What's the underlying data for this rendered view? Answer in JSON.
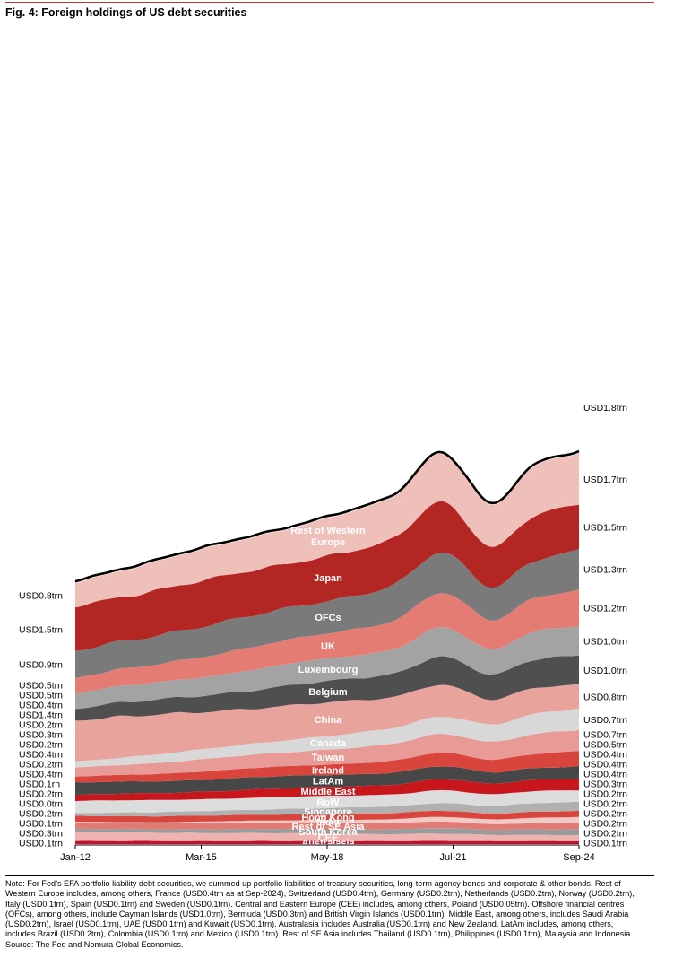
{
  "figure": {
    "title": "Fig. 4: Foreign holdings of US debt securities"
  },
  "chart_data": {
    "type": "area",
    "stacked": true,
    "title": "Fig. 4: Foreign holdings of US debt securities",
    "x_tick_labels": [
      "Jan-12",
      "Mar-15",
      "May-18",
      "Jul-21",
      "Sep-24"
    ],
    "x_range": [
      "Jan-12",
      "Sep-24"
    ],
    "y_axis": "hidden",
    "total_line": {
      "name": "Total",
      "color": "#000000"
    },
    "series": [
      {
        "name": "Australasia",
        "color": "#c8102e",
        "start": 0.1,
        "end": 0.1,
        "label_left": "USD0.1trn",
        "label_right": "USD0.1trn"
      },
      {
        "name": "CEE",
        "color": "#eeb2b0",
        "start": 0.3,
        "end": 0.2,
        "label_left": "USD0.3trn",
        "label_right": "USD0.2trn"
      },
      {
        "name": "South Korea",
        "color": "#9b9b9b",
        "start": 0.1,
        "end": 0.2,
        "label_left": "USD0.1trn",
        "label_right": "USD0.2trn"
      },
      {
        "name": "Rest of SE Asia",
        "color": "#e07b75",
        "start": 0.2,
        "end": 0.2,
        "label_left": "USD0.2trn",
        "label_right": "USD0.2trn"
      },
      {
        "name": "India",
        "color": "#f3c9c6",
        "start": 0.0,
        "end": 0.2,
        "label_left": "USD0.0trn",
        "label_right": "USD0.2trn"
      },
      {
        "name": "Hong Kong",
        "color": "#d9453c",
        "start": 0.2,
        "end": 0.2,
        "label_left": "USD0.2trn",
        "label_right": "USD0.2trn"
      },
      {
        "name": "Singapore",
        "color": "#b0b0b0",
        "start": 0.1,
        "end": 0.3,
        "label_left": "USD0.1rn",
        "label_right": "USD0.3trn"
      },
      {
        "name": "RoW",
        "color": "#dcdcdc",
        "start": 0.4,
        "end": 0.4,
        "label_left": "USD0.4trn",
        "label_right": "USD0.4trn"
      },
      {
        "name": "Middle East",
        "color": "#c8161d",
        "start": 0.2,
        "end": 0.4,
        "label_left": "USD0.2trn",
        "label_right": "USD0.4trn"
      },
      {
        "name": "LatAm",
        "color": "#474747",
        "start": 0.4,
        "end": 0.4,
        "label_left": "USD0.4trn",
        "label_right": "USD0.4trn"
      },
      {
        "name": "Ireland",
        "color": "#d9453c",
        "start": 0.2,
        "end": 0.5,
        "label_left": "USD0.2trn",
        "label_right": "USD0.5trn"
      },
      {
        "name": "Taiwan",
        "color": "#e89a97",
        "start": 0.3,
        "end": 0.7,
        "label_left": "USD0.3trn",
        "label_right": "USD0.7trn"
      },
      {
        "name": "Canada",
        "color": "#d8d8d8",
        "start": 0.2,
        "end": 0.7,
        "label_left": "USD0.2trn",
        "label_right": "USD0.7trn"
      },
      {
        "name": "China",
        "color": "#e8a39c",
        "start": 1.4,
        "end": 0.8,
        "label_left": "USD1.4trn",
        "label_right": "USD0.8trn"
      },
      {
        "name": "Belgium",
        "color": "#4f4f4f",
        "start": 0.4,
        "end": 1.0,
        "label_left": "USD0.4trn",
        "label_right": "USD1.0trn"
      },
      {
        "name": "Luxembourg",
        "color": "#a3a3a3",
        "start": 0.5,
        "end": 1.0,
        "label_left": "USD0.5trn",
        "label_right": "USD1.0trn"
      },
      {
        "name": "UK",
        "color": "#e57c74",
        "start": 0.5,
        "end": 1.2,
        "label_left": "USD0.5trn",
        "label_right": "USD1.2trn"
      },
      {
        "name": "OFCs",
        "color": "#7a7a7a",
        "start": 0.9,
        "end": 1.3,
        "label_left": "USD0.9trn",
        "label_right": "USD1.3trn"
      },
      {
        "name": "Japan",
        "color": "#b32624",
        "start": 1.5,
        "end": 1.5,
        "label_left": "USD1.5trn",
        "label_right": "USD1.5trn"
      },
      {
        "name": "Rest of Western Europe",
        "color": "#efbfba",
        "start": 0.8,
        "end": 1.7,
        "label_left": "USD0.8trn",
        "label_right": "USD1.7trn"
      }
    ],
    "top_right_label": "USD1.8trn"
  },
  "footnote": {
    "note": "Note: For Fed’s EFA portfolio liability debt securities, we summed up portfolio liabilities of treasury securities, long-term agency bonds and corporate & other bonds. Rest of Western Europe includes, among others, France (USD0.4trn as at Sep-2024), Switzerland (USD0.4trn), Germany (USD0.2trn), Netherlands (USD0.2trn), Norway (USD0.2trn), Italy (USD0.1trn), Spain (USD0.1trn) and Sweden (USD0.1trn). Central and Eastern Europe (CEE) includes, among others, Poland (USD0.05trn). Offshore financial centres (OFCs), among others, include Cayman Islands (USD1.0trn), Bermuda (USD0.3trn) and British Virgin Islands (USD0.1trn). Middle East, among others, includes Saudi Arabia (USD0.2trn), Israel (USD0.1trn), UAE (USD0.1trn) and Kuwait (USD0.1trn). Australasia includes Australia (USD0.1trn) and New Zealand. LatAm includes, among others, includes Brazil (USD0.2trn), Colombia (USD0.1trn) and Mexico (USD0.1trn). Rest of SE Asia includes Thailand (USD0.1trn), Philippines (USD0.1trn), Malaysia and Indonesia.",
    "source": "Source: The Fed and Nomura Global Economics."
  }
}
